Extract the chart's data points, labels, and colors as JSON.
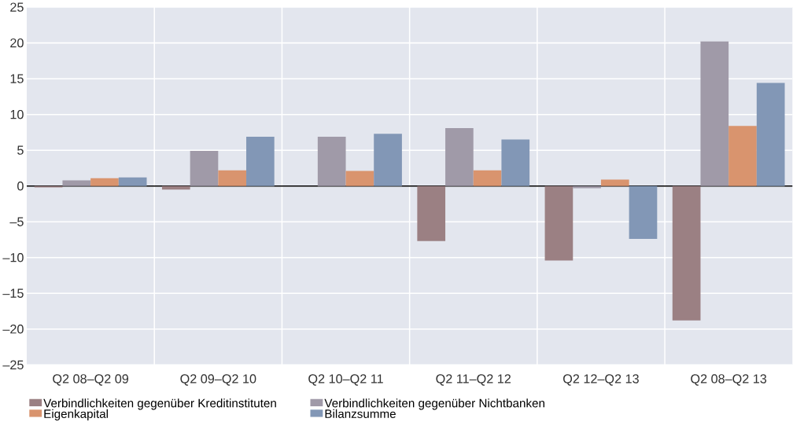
{
  "chart_data": {
    "type": "bar",
    "categories": [
      "Q2 08–Q2 09",
      "Q2 09–Q2 10",
      "Q2 10–Q2 11",
      "Q2 11–Q2 12",
      "Q2 12–Q2 13",
      "Q2 08–Q2 13"
    ],
    "series": [
      {
        "name": "Verbindlichkeiten gegenüber Kreditinstituten",
        "color": "#9b8083",
        "values": [
          -0.2,
          -0.5,
          0,
          -7.7,
          -10.4,
          -18.8
        ]
      },
      {
        "name": "Verbindlichkeiten gegenüber Nichtbanken",
        "color": "#a09aa8",
        "values": [
          0.8,
          4.9,
          6.9,
          8.1,
          -0.3,
          20.2
        ]
      },
      {
        "name": "Eigenkapital",
        "color": "#d9946e",
        "values": [
          1.1,
          2.2,
          2.1,
          2.2,
          0.9,
          8.4
        ]
      },
      {
        "name": "Bilanzsumme",
        "color": "#8297b6",
        "values": [
          1.2,
          6.9,
          7.3,
          6.5,
          -7.4,
          14.4
        ]
      }
    ],
    "ylim": [
      -25,
      25
    ],
    "yticks": [
      {
        "value": -25,
        "label": "–25"
      },
      {
        "value": -20,
        "label": "–20"
      },
      {
        "value": -15,
        "label": "–15"
      },
      {
        "value": -10,
        "label": "–10"
      },
      {
        "value": -5,
        "label": "–5"
      },
      0,
      5,
      10,
      15,
      20,
      25
    ],
    "grid": true,
    "legend": "bottom"
  }
}
